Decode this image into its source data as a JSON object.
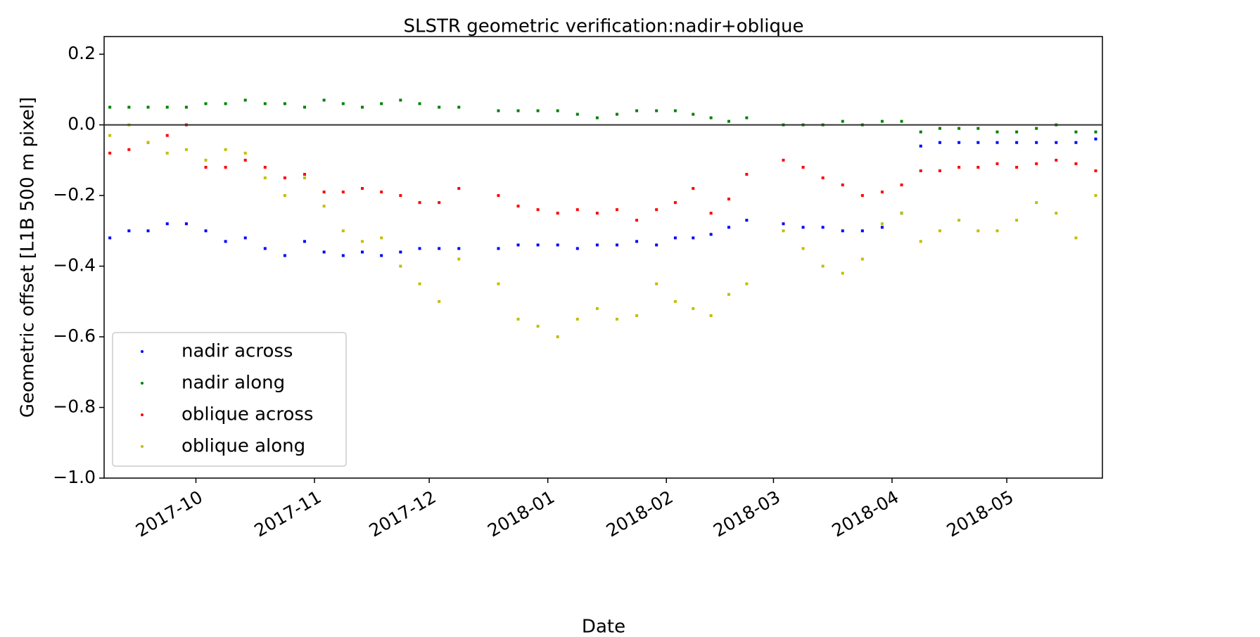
{
  "chart_data": {
    "type": "scatter",
    "title": "SLSTR geometric verification:nadir+oblique",
    "x_label": "Date",
    "y_label": "Geometric offset [L1B 500 m pixel]",
    "x": [
      "2017-09",
      "2017-10",
      "2017-11",
      "2017-12",
      "2018-01",
      "2018-02",
      "2018-03",
      "2018-04",
      "2018-05"
    ],
    "xlim": [
      "2017-09-07",
      "2018-05-26"
    ],
    "xticks": [
      "2017-10",
      "2017-11",
      "2017-12",
      "2018-01",
      "2018-02",
      "2018-03",
      "2018-04",
      "2018-05"
    ],
    "ylim": [
      -1,
      0.25
    ],
    "yticks": [
      {
        "value": -1,
        "label": "−1.0"
      },
      {
        "value": -0.8,
        "label": "−0.8"
      },
      {
        "value": -0.6,
        "label": "−0.6"
      },
      {
        "value": -0.4,
        "label": "−0.4"
      },
      {
        "value": -0.2,
        "label": "−0.2"
      },
      {
        "value": 0,
        "label": "0.0"
      },
      0.2
    ],
    "hline": 0,
    "legend": "lower left",
    "series": [
      {
        "name": "nadir across",
        "color": "#0000ff",
        "values": [
          [
            null,
            -0.32,
            -0.3,
            -0.3,
            -0.28,
            -0.28
          ],
          [
            -0.3,
            -0.33,
            -0.32,
            -0.35,
            -0.37,
            -0.33
          ],
          [
            -0.36,
            -0.37,
            -0.36,
            -0.37,
            -0.36,
            -0.35
          ],
          [
            -0.35,
            -0.35,
            null,
            -0.35,
            -0.34,
            -0.34
          ],
          [
            -0.34,
            -0.35,
            -0.34,
            -0.34,
            -0.33,
            -0.34
          ],
          [
            -0.32,
            -0.32,
            -0.31,
            -0.29,
            -0.27,
            null
          ],
          [
            -0.28,
            -0.29,
            -0.29,
            -0.3,
            -0.3,
            -0.29
          ],
          [
            -0.25,
            -0.06,
            -0.05,
            -0.05,
            -0.05,
            -0.05
          ],
          [
            -0.05,
            -0.05,
            -0.05,
            -0.05,
            -0.04,
            -0.04
          ]
        ]
      },
      {
        "name": "nadir along",
        "color": "#008000",
        "values": [
          [
            null,
            0.05,
            0.05,
            0.05,
            0.05,
            0.05
          ],
          [
            0.06,
            0.06,
            0.07,
            0.06,
            0.06,
            0.05
          ],
          [
            0.07,
            0.06,
            0.05,
            0.06,
            0.07,
            0.06
          ],
          [
            0.05,
            0.05,
            null,
            0.04,
            0.04,
            0.04
          ],
          [
            0.04,
            0.03,
            0.02,
            0.03,
            0.04,
            0.04
          ],
          [
            0.04,
            0.03,
            0.02,
            0.01,
            0.02,
            null
          ],
          [
            0.0,
            0.0,
            0.0,
            0.01,
            0.0,
            0.01
          ],
          [
            0.01,
            -0.02,
            -0.01,
            -0.01,
            -0.01,
            -0.02
          ],
          [
            -0.02,
            -0.01,
            0.0,
            -0.02,
            -0.02,
            0.01
          ]
        ]
      },
      {
        "name": "oblique across",
        "color": "#ff0000",
        "values": [
          [
            null,
            -0.08,
            -0.07,
            -0.05,
            -0.03,
            0.0
          ],
          [
            -0.12,
            -0.12,
            -0.1,
            -0.12,
            -0.15,
            -0.14
          ],
          [
            -0.19,
            -0.19,
            -0.18,
            -0.19,
            -0.2,
            -0.22
          ],
          [
            -0.22,
            -0.18,
            null,
            -0.2,
            -0.23,
            -0.24
          ],
          [
            -0.25,
            -0.24,
            -0.25,
            -0.24,
            -0.27,
            -0.24
          ],
          [
            -0.22,
            -0.18,
            -0.25,
            -0.21,
            -0.14,
            null
          ],
          [
            -0.1,
            -0.12,
            -0.15,
            -0.17,
            -0.2,
            -0.19
          ],
          [
            -0.17,
            -0.13,
            -0.13,
            -0.12,
            -0.12,
            -0.11
          ],
          [
            -0.12,
            -0.11,
            -0.1,
            -0.11,
            -0.13,
            -0.13
          ]
        ]
      },
      {
        "name": "oblique along",
        "color": "#bfbf00",
        "values": [
          [
            null,
            -0.03,
            0.0,
            -0.05,
            -0.08,
            -0.07
          ],
          [
            -0.1,
            -0.07,
            -0.08,
            -0.15,
            -0.2,
            -0.15
          ],
          [
            -0.23,
            -0.3,
            -0.33,
            -0.32,
            -0.4,
            -0.45
          ],
          [
            -0.5,
            -0.38,
            null,
            -0.45,
            -0.55,
            -0.57
          ],
          [
            -0.6,
            -0.55,
            -0.52,
            -0.55,
            -0.54,
            -0.45
          ],
          [
            -0.5,
            -0.52,
            -0.54,
            -0.48,
            -0.45,
            null
          ],
          [
            -0.3,
            -0.35,
            -0.4,
            -0.42,
            -0.38,
            -0.28
          ],
          [
            -0.25,
            -0.33,
            -0.3,
            -0.27,
            -0.3,
            -0.3
          ],
          [
            -0.27,
            -0.22,
            -0.25,
            -0.32,
            -0.2,
            -0.15
          ]
        ]
      }
    ]
  }
}
